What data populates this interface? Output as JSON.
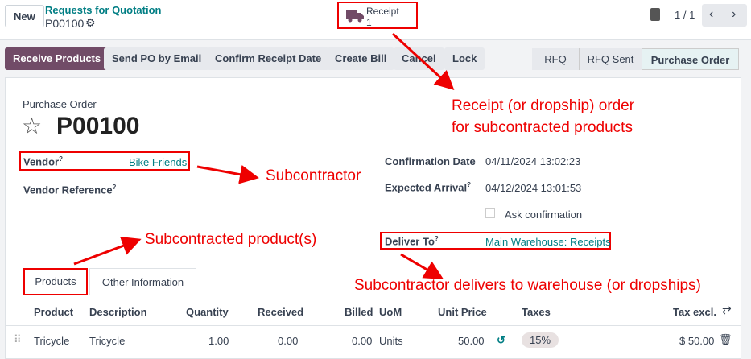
{
  "header": {
    "new_label": "New",
    "breadcrumb_parent": "Requests for Quotation",
    "record": "P00100",
    "receipt_label": "Receipt",
    "receipt_count": "1",
    "pager": "1 / 1"
  },
  "actions": {
    "receive": "Receive Products",
    "send": "Send PO by Email",
    "confirm": "Confirm Receipt Date",
    "bill": "Create Bill",
    "cancel": "Cancel",
    "lock": "Lock"
  },
  "statusbar": {
    "items": [
      "RFQ",
      "RFQ Sent",
      "Purchase Order"
    ],
    "active": "Purchase Order"
  },
  "form": {
    "type_label": "Purchase Order",
    "title": "P00100",
    "vendor_label": "Vendor",
    "vendor_value": "Bike Friends",
    "vendor_ref_label": "Vendor Reference",
    "confirmation_label": "Confirmation Date",
    "confirmation_value": "04/11/2024 13:02:23",
    "expected_label": "Expected Arrival",
    "expected_value": "04/12/2024 13:01:53",
    "ask_confirmation": "Ask confirmation",
    "deliver_label": "Deliver To",
    "deliver_value": "Main Warehouse: Receipts",
    "help": "?"
  },
  "tabs": [
    "Products",
    "Other Information"
  ],
  "table": {
    "headers": [
      "Product",
      "Description",
      "Quantity",
      "Received",
      "Billed",
      "UoM",
      "Unit Price",
      "Taxes",
      "Tax excl."
    ],
    "rows": [
      {
        "product": "Tricycle",
        "description": "Tricycle",
        "quantity": "1.00",
        "received": "0.00",
        "billed": "0.00",
        "uom": "Units",
        "unit_price": "50.00",
        "tax": "15%",
        "subtotal": "$ 50.00"
      }
    ]
  },
  "annotations": {
    "receipt": "Receipt (or dropship) order",
    "receipt2": "for subcontracted products",
    "subcontractor": "Subcontractor",
    "product": "Subcontracted product(s)",
    "deliver": "Subcontractor delivers to warehouse (or dropships)"
  },
  "colors": {
    "primary": "#714b67",
    "link": "#017e84",
    "annotation": "#ee0000"
  }
}
